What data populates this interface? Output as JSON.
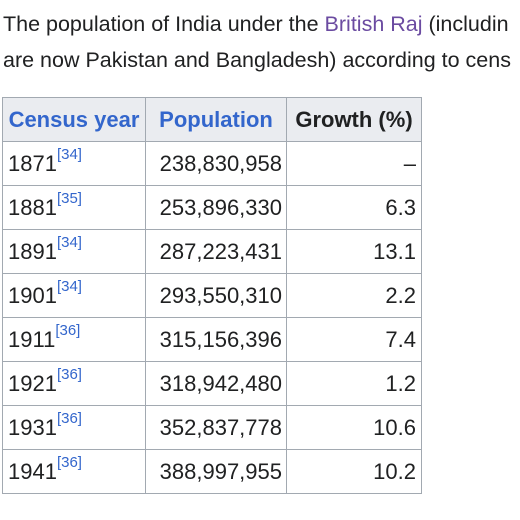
{
  "intro": {
    "line1_before": "The population of India under the ",
    "line1_link": "British Raj",
    "line1_after": " (includin",
    "line2": "are now Pakistan and Bangladesh) according to cens"
  },
  "table": {
    "headers": {
      "year": "Census year",
      "population": "Population",
      "growth": "Growth (%)"
    },
    "rows": [
      {
        "year": "1871",
        "ref": "[34]",
        "population": "238,830,958",
        "growth": "–"
      },
      {
        "year": "1881",
        "ref": "[35]",
        "population": "253,896,330",
        "growth": "6.3"
      },
      {
        "year": "1891",
        "ref": "[34]",
        "population": "287,223,431",
        "growth": "13.1"
      },
      {
        "year": "1901",
        "ref": "[34]",
        "population": "293,550,310",
        "growth": "2.2"
      },
      {
        "year": "1911",
        "ref": "[36]",
        "population": "315,156,396",
        "growth": "7.4"
      },
      {
        "year": "1921",
        "ref": "[36]",
        "population": "318,942,480",
        "growth": "1.2"
      },
      {
        "year": "1931",
        "ref": "[36]",
        "population": "352,837,778",
        "growth": "10.6"
      },
      {
        "year": "1941",
        "ref": "[36]",
        "population": "388,997,955",
        "growth": "10.2"
      }
    ]
  },
  "colors": {
    "text": "#202122",
    "link": "#3366cc",
    "visited_link": "#6b4ba1",
    "header_bg": "#eaecf0",
    "border": "#a2a9b1"
  }
}
